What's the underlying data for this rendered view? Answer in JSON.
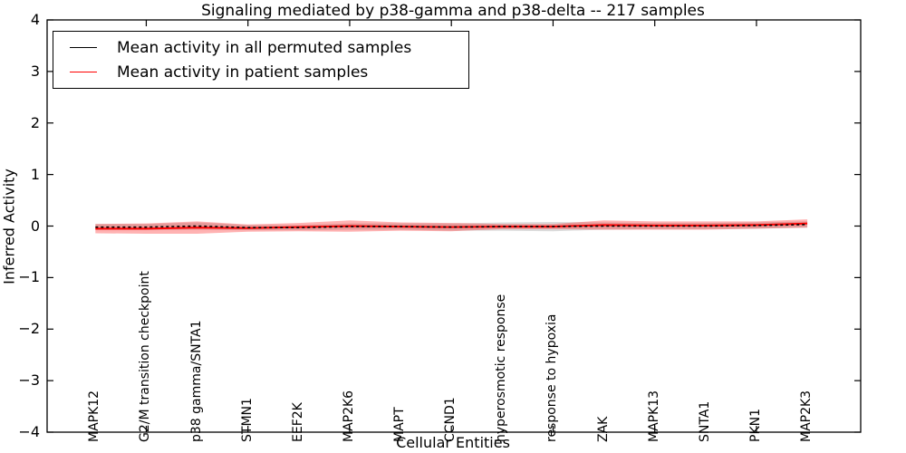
{
  "chart_data": {
    "type": "line",
    "title": "Signaling mediated by p38-gamma and p38-delta -- 217 samples",
    "xlabel": "Cellular Entities",
    "ylabel": "Inferred Activity",
    "ylim": [
      -4,
      4
    ],
    "yticks": [
      4,
      3,
      2,
      1,
      0,
      -1,
      -2,
      -3,
      -4
    ],
    "ytick_labels": [
      "4",
      "3",
      "2",
      "1",
      "0",
      "−1",
      "−2",
      "−3",
      "−4"
    ],
    "grid": false,
    "legend_position": "upper left",
    "categories": [
      "MAPK12",
      "G2/M transition checkpoint",
      "p38 gamma/SNTA1",
      "STMN1",
      "EEF2K",
      "MAP2K6",
      "MAPT",
      "CCND1",
      "hyperosmotic response",
      "response to hypoxia",
      "ZAK",
      "MAPK13",
      "SNTA1",
      "PKN1",
      "MAP2K3"
    ],
    "xticks_on_spines_at_category_indices": [
      1,
      3,
      5,
      7,
      9,
      11,
      13
    ],
    "series": [
      {
        "name": "Mean activity in all permuted samples",
        "color": "#000000",
        "line_style": "dashed",
        "values": [
          -0.02,
          -0.02,
          0.0,
          -0.03,
          -0.03,
          -0.01,
          -0.01,
          -0.02,
          -0.01,
          -0.01,
          0.0,
          0.0,
          0.0,
          0.01,
          0.03
        ],
        "band_upper": [
          0.04,
          0.04,
          0.07,
          0.02,
          0.02,
          0.05,
          0.05,
          0.05,
          0.07,
          0.08,
          0.07,
          0.06,
          0.06,
          0.07,
          0.09
        ],
        "band_lower": [
          -0.08,
          -0.08,
          -0.07,
          -0.08,
          -0.08,
          -0.07,
          -0.07,
          -0.09,
          -0.09,
          -0.1,
          -0.07,
          -0.06,
          -0.06,
          -0.05,
          -0.03
        ],
        "band_color": "#999999",
        "band_opacity": 0.35
      },
      {
        "name": "Mean activity in patient samples",
        "color": "#ff0000",
        "line_style": "solid",
        "values": [
          -0.05,
          -0.05,
          -0.03,
          -0.04,
          -0.02,
          0.0,
          -0.01,
          -0.02,
          -0.01,
          -0.01,
          0.02,
          0.01,
          0.01,
          0.02,
          0.05
        ],
        "band_upper": [
          0.04,
          0.05,
          0.09,
          0.03,
          0.06,
          0.11,
          0.07,
          0.06,
          0.04,
          0.04,
          0.11,
          0.09,
          0.09,
          0.09,
          0.13
        ],
        "band_lower": [
          -0.14,
          -0.15,
          -0.15,
          -0.11,
          -0.1,
          -0.11,
          -0.09,
          -0.1,
          -0.06,
          -0.06,
          -0.07,
          -0.07,
          -0.07,
          -0.05,
          -0.03
        ],
        "band_color": "#ff0000",
        "band_opacity": 0.3
      }
    ]
  }
}
